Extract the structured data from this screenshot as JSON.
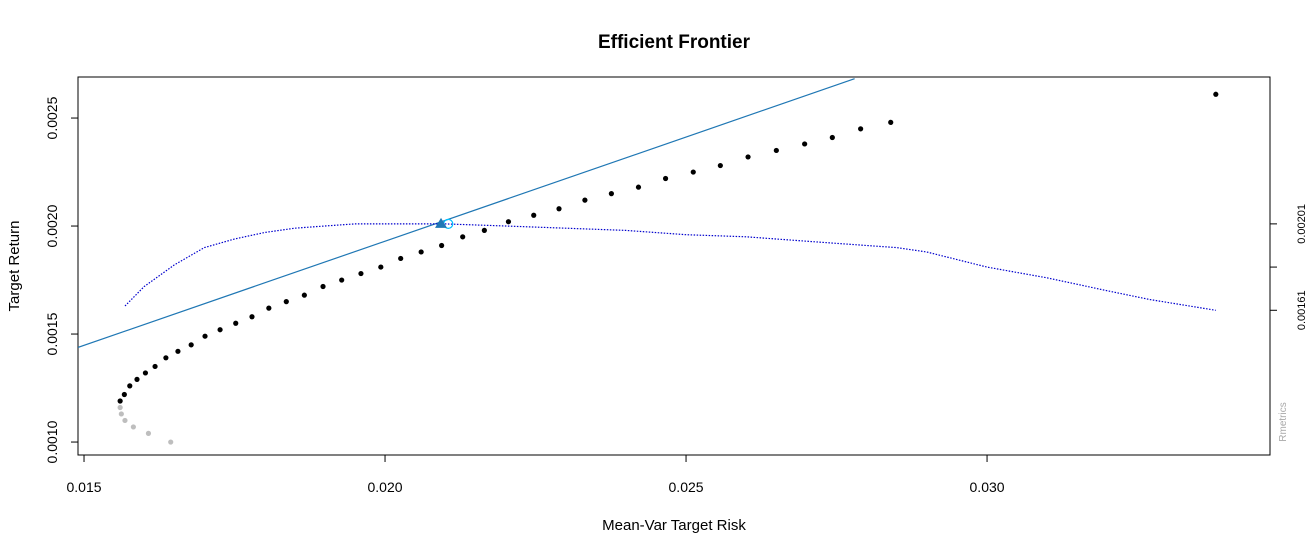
{
  "chart_data": {
    "type": "scatter",
    "title": "Efficient Frontier",
    "xlabel": "Mean-Var Target Risk",
    "ylabel": "Target Return",
    "xlim": [
      0.0149,
      0.0347
    ],
    "ylim": [
      0.00094,
      0.00269
    ],
    "x_ticks": [
      "0.015",
      "0.020",
      "0.025",
      "0.030"
    ],
    "x_tick_values": [
      0.015,
      0.02,
      0.025,
      0.03
    ],
    "y_ticks": [
      "0.0010",
      "0.0015",
      "0.0020",
      "0.0025"
    ],
    "y_tick_values": [
      0.001,
      0.0015,
      0.002,
      0.0025
    ],
    "right_axis": {
      "tick_values": [
        0.00201,
        0.00181,
        0.00161
      ],
      "labels": [
        "0.00201",
        "0.00161"
      ],
      "label_values": [
        0.00201,
        0.00161
      ]
    },
    "watermark": "Rmetrics",
    "colors": {
      "frontier": "#000000",
      "inefficient": "#bebebe",
      "tangency_line": "#1f77b4",
      "sharpe_curve": "#0000cd",
      "tangency_point": "#1f77b4",
      "max_sharpe_marker": "#00bfff"
    },
    "series": [
      {
        "values_kind": "efficient",
        "x": [
          0.0156,
          0.01567,
          0.01576,
          0.01588,
          0.01602,
          0.01618,
          0.01636,
          0.01656,
          0.01678,
          0.01701,
          0.01726,
          0.01752,
          0.01779,
          0.01807,
          0.01836,
          0.01866,
          0.01897,
          0.01928,
          0.0196,
          0.01993,
          0.02026,
          0.0206,
          0.02094,
          0.02129,
          0.02165,
          0.02205,
          0.02247,
          0.02289,
          0.02332,
          0.02376,
          0.02421,
          0.02466,
          0.02512,
          0.02557,
          0.02603,
          0.0265,
          0.02697,
          0.02743,
          0.0279,
          0.0284,
          0.0338
        ],
        "y": [
          0.00119,
          0.00122,
          0.00126,
          0.00129,
          0.00132,
          0.00135,
          0.00139,
          0.00142,
          0.00145,
          0.00149,
          0.00152,
          0.00155,
          0.00158,
          0.00162,
          0.00165,
          0.00168,
          0.00172,
          0.00175,
          0.00178,
          0.00181,
          0.00185,
          0.00188,
          0.00191,
          0.00195,
          0.00198,
          0.00202,
          0.00205,
          0.00208,
          0.00212,
          0.00215,
          0.00218,
          0.00222,
          0.00225,
          0.00228,
          0.00232,
          0.00235,
          0.00238,
          0.00241,
          0.00245,
          0.00248,
          0.00261
        ]
      },
      {
        "values_kind": "inefficient",
        "x": [
          0.0156,
          0.01562,
          0.01568,
          0.01582,
          0.01607,
          0.01644
        ],
        "y": [
          0.00116,
          0.00113,
          0.0011,
          0.00107,
          0.00104,
          0.001
        ]
      }
    ],
    "tangency_line": {
      "x": [
        0.0149,
        0.0278
      ],
      "y": [
        0.001438,
        0.002682
      ]
    },
    "tangency_point": {
      "x": 0.02093,
      "y": 0.00201
    },
    "max_sharpe_point": {
      "x": 0.02105,
      "y": 0.00201
    },
    "sharpe_curve": {
      "x": [
        0.01568,
        0.016,
        0.0165,
        0.017,
        0.0175,
        0.018,
        0.0185,
        0.019,
        0.0195,
        0.02,
        0.021,
        0.022,
        0.023,
        0.024,
        0.025,
        0.026,
        0.027,
        0.028,
        0.0285,
        0.029,
        0.03,
        0.031,
        0.032,
        0.0327,
        0.0338
      ],
      "y": [
        0.00163,
        0.00172,
        0.00182,
        0.0019,
        0.00194,
        0.00197,
        0.00199,
        0.002,
        0.00201,
        0.00201,
        0.00201,
        0.002,
        0.00199,
        0.00198,
        0.00196,
        0.00195,
        0.00193,
        0.00191,
        0.0019,
        0.00188,
        0.00181,
        0.00176,
        0.0017,
        0.00166,
        0.00161
      ]
    }
  }
}
